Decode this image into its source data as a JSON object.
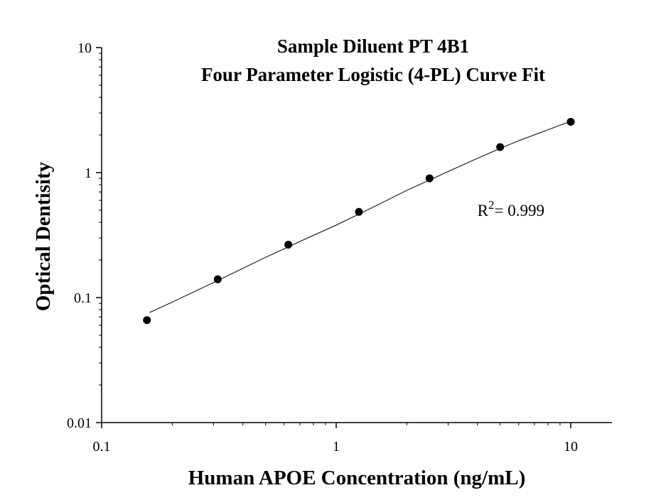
{
  "chart_data": {
    "type": "scatter",
    "title": "Sample Diluent PT 4B1",
    "subtitle": "Four Parameter Logistic (4-PL) Curve Fit",
    "xlabel": "Human APOE Concentration (ng/mL)",
    "ylabel": "Optical Dentisity",
    "x_scale": "log",
    "y_scale": "log",
    "xlim": [
      0.1,
      15
    ],
    "ylim": [
      0.01,
      10
    ],
    "x_ticks": [
      {
        "value": 0.1,
        "label": "0.1"
      },
      {
        "value": 1,
        "label": "1"
      },
      {
        "value": 10,
        "label": "10"
      }
    ],
    "y_ticks": [
      {
        "value": 0.01,
        "label": "0.01"
      },
      {
        "value": 0.1,
        "label": "0.1"
      },
      {
        "value": 1,
        "label": "1"
      },
      {
        "value": 10,
        "label": "10"
      }
    ],
    "grid": false,
    "legend": "none",
    "points": {
      "x": [
        0.156,
        0.3125,
        0.625,
        1.25,
        2.5,
        5,
        10
      ],
      "y": [
        0.066,
        0.14,
        0.265,
        0.485,
        0.9,
        1.6,
        2.55
      ]
    },
    "fit_curve": {
      "x": [
        0.16,
        0.2,
        0.3,
        0.5,
        0.75,
        1,
        1.5,
        2,
        3,
        4,
        5,
        6,
        8,
        10
      ],
      "y": [
        0.076,
        0.092,
        0.132,
        0.21,
        0.298,
        0.38,
        0.55,
        0.72,
        1.02,
        1.3,
        1.56,
        1.8,
        2.2,
        2.58
      ]
    },
    "annotation": {
      "r_symbol": "R",
      "r_exponent": "2",
      "r_value": "= 0.999",
      "x": 4.0,
      "y": 0.45
    }
  }
}
